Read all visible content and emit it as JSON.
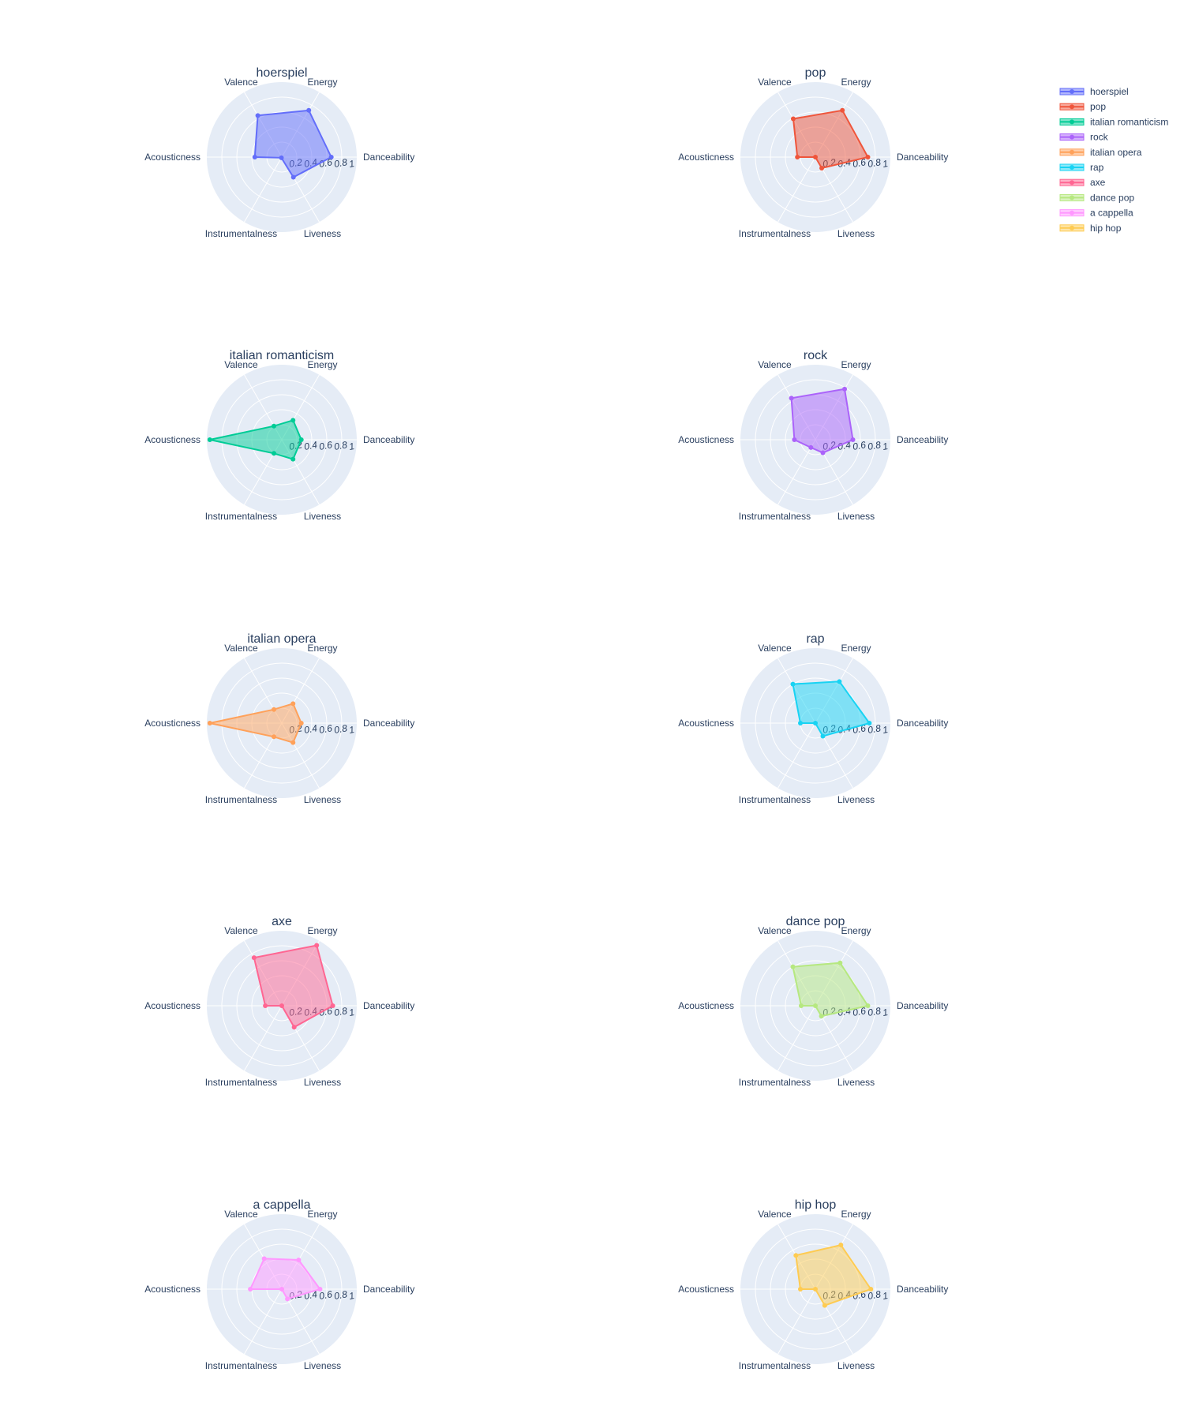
{
  "chart_data": {
    "type": "radar",
    "axes": [
      "Danceability",
      "Energy",
      "Valence",
      "Acousticness",
      "Instrumentalness",
      "Liveness"
    ],
    "radial_ticks": [
      "0.2",
      "0.4",
      "0.6",
      "0.8",
      "1"
    ],
    "range": [
      0,
      1
    ],
    "legend": {
      "position": "top-right"
    },
    "series": [
      {
        "name": "hoerspiel",
        "color": "#636efa",
        "values": [
          0.66,
          0.72,
          0.64,
          0.36,
          0.01,
          0.31
        ]
      },
      {
        "name": "pop",
        "color": "#EF553B",
        "values": [
          0.7,
          0.72,
          0.59,
          0.24,
          0.0,
          0.17
        ]
      },
      {
        "name": "italian romanticism",
        "color": "#00cc96",
        "values": [
          0.26,
          0.3,
          0.21,
          0.96,
          0.21,
          0.3
        ]
      },
      {
        "name": "rock",
        "color": "#ab63fa",
        "values": [
          0.5,
          0.78,
          0.64,
          0.28,
          0.12,
          0.2
        ]
      },
      {
        "name": "italian opera",
        "color": "#FFA15A",
        "values": [
          0.26,
          0.3,
          0.21,
          0.96,
          0.21,
          0.3
        ]
      },
      {
        "name": "rap",
        "color": "#19d3f3",
        "values": [
          0.72,
          0.64,
          0.6,
          0.2,
          0.0,
          0.2
        ]
      },
      {
        "name": "axe",
        "color": "#FF6692",
        "values": [
          0.68,
          0.93,
          0.74,
          0.22,
          0.0,
          0.33
        ]
      },
      {
        "name": "dance pop",
        "color": "#B6E880",
        "values": [
          0.7,
          0.66,
          0.6,
          0.19,
          0.0,
          0.16
        ]
      },
      {
        "name": "a cappella",
        "color": "#FF97FF",
        "values": [
          0.51,
          0.45,
          0.47,
          0.42,
          0.0,
          0.15
        ]
      },
      {
        "name": "hip hop",
        "color": "#FECB52",
        "values": [
          0.74,
          0.68,
          0.52,
          0.2,
          0.0,
          0.25
        ]
      }
    ]
  }
}
